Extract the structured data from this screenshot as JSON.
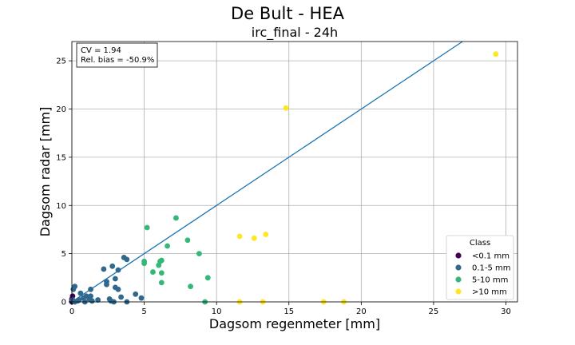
{
  "chart_data": {
    "type": "scatter",
    "suptitle": "De Bult - HEA",
    "title": "irc_final - 24h",
    "xlabel": "Dagsom regenmeter [mm]",
    "ylabel": "Dagsom radar [mm]",
    "xlim": [
      0,
      30.8
    ],
    "ylim": [
      0,
      27
    ],
    "xticks": [
      0,
      5,
      10,
      15,
      20,
      25,
      30
    ],
    "yticks": [
      0,
      5,
      10,
      15,
      20,
      25
    ],
    "xtick_labels": [
      "0",
      "5",
      "10",
      "15",
      "20",
      "25",
      "30"
    ],
    "ytick_labels": [
      "0",
      "5",
      "10",
      "15",
      "20",
      "25"
    ],
    "grid": true,
    "annotation": [
      "CV = 1.94",
      "Rel. bias = -50.9%"
    ],
    "reference_line": {
      "x": [
        0,
        27
      ],
      "y": [
        0,
        27
      ],
      "color": "#1f77b4"
    },
    "legend": {
      "title": "Class",
      "placement": "lower-right"
    },
    "series": [
      {
        "name": "<0.1 mm",
        "color": "#440154",
        "points": [
          [
            0.0,
            0.3
          ],
          [
            0.0,
            0.0
          ],
          [
            0.05,
            0.6
          ],
          [
            0.0,
            0.1
          ]
        ]
      },
      {
        "name": "0.1-5 mm",
        "color": "#31688e",
        "points": [
          [
            0.05,
            0.2
          ],
          [
            0.1,
            1.3
          ],
          [
            0.2,
            1.6
          ],
          [
            0.2,
            0.0
          ],
          [
            0.4,
            0.1
          ],
          [
            0.5,
            0.2
          ],
          [
            0.6,
            0.9
          ],
          [
            0.8,
            0.4
          ],
          [
            0.9,
            0.0
          ],
          [
            1.0,
            0.6
          ],
          [
            1.2,
            0.3
          ],
          [
            1.3,
            0.6
          ],
          [
            1.3,
            1.3
          ],
          [
            1.4,
            0.1
          ],
          [
            1.8,
            0.2
          ],
          [
            2.2,
            3.4
          ],
          [
            2.4,
            2.1
          ],
          [
            2.4,
            1.8
          ],
          [
            2.6,
            0.3
          ],
          [
            2.7,
            0.1
          ],
          [
            2.8,
            3.7
          ],
          [
            2.9,
            0.0
          ],
          [
            3.0,
            1.5
          ],
          [
            3.0,
            2.4
          ],
          [
            3.2,
            1.3
          ],
          [
            3.2,
            3.3
          ],
          [
            3.4,
            0.5
          ],
          [
            3.6,
            4.6
          ],
          [
            3.8,
            4.4
          ],
          [
            3.8,
            0.0
          ],
          [
            4.4,
            0.8
          ],
          [
            4.8,
            0.4
          ]
        ]
      },
      {
        "name": "5-10 mm",
        "color": "#35b779",
        "points": [
          [
            5.0,
            4.0
          ],
          [
            5.0,
            4.2
          ],
          [
            5.2,
            7.7
          ],
          [
            5.6,
            3.1
          ],
          [
            6.0,
            3.8
          ],
          [
            6.1,
            4.2
          ],
          [
            6.2,
            4.3
          ],
          [
            6.2,
            3.0
          ],
          [
            6.2,
            2.0
          ],
          [
            6.6,
            5.8
          ],
          [
            7.2,
            8.7
          ],
          [
            8.0,
            6.4
          ],
          [
            8.2,
            1.6
          ],
          [
            8.8,
            5.0
          ],
          [
            9.2,
            0.0
          ],
          [
            9.4,
            2.5
          ]
        ]
      },
      {
        "name": ">10 mm",
        "color": "#fde725",
        "points": [
          [
            11.6,
            6.8
          ],
          [
            11.6,
            0.0
          ],
          [
            12.6,
            6.6
          ],
          [
            13.2,
            0.0
          ],
          [
            13.4,
            7.0
          ],
          [
            14.8,
            20.1
          ],
          [
            17.4,
            0.0
          ],
          [
            18.8,
            0.0
          ],
          [
            29.3,
            25.7
          ]
        ]
      }
    ]
  }
}
